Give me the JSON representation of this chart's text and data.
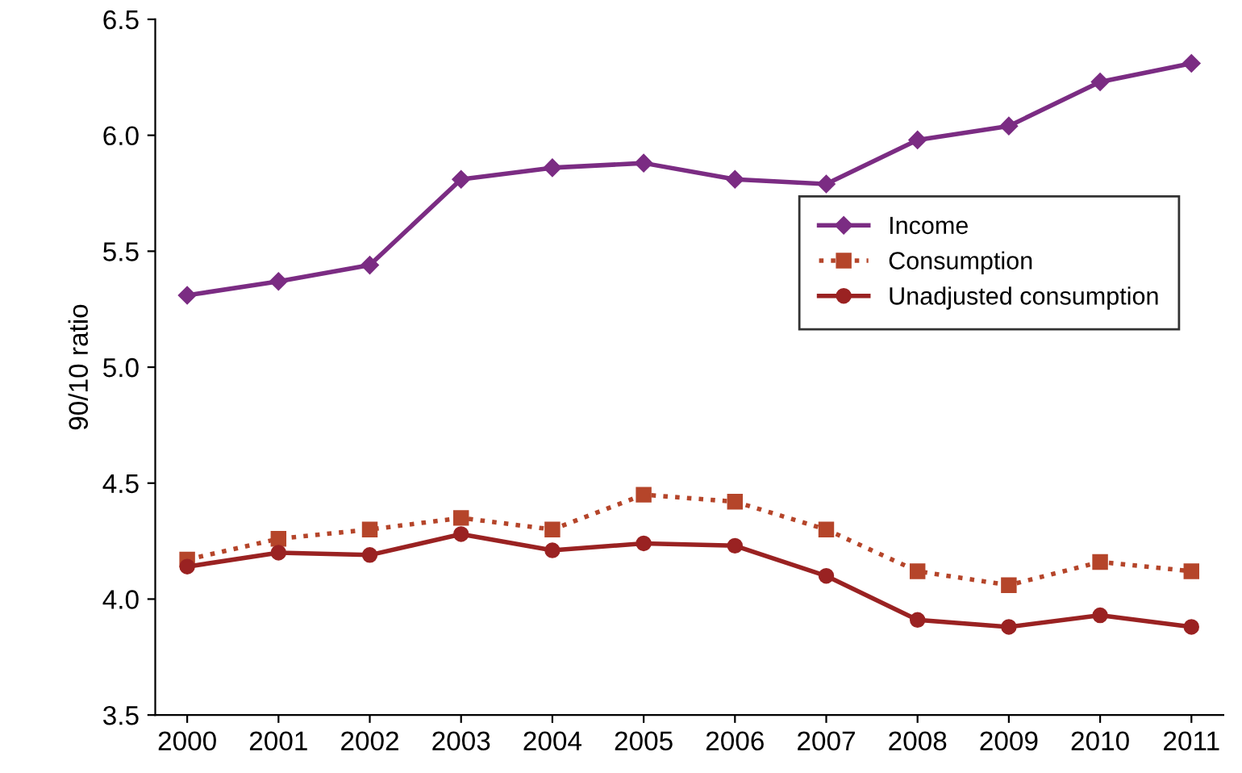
{
  "chart_data": {
    "type": "line",
    "ylabel": "90/10 ratio",
    "categories": [
      "2000",
      "2001",
      "2002",
      "2003",
      "2004",
      "2005",
      "2006",
      "2007",
      "2008",
      "2009",
      "2010",
      "2011"
    ],
    "series": [
      {
        "name": "Income",
        "color": "#7b2c83",
        "marker": "diamond",
        "line_style": "solid",
        "values": [
          5.31,
          5.37,
          5.44,
          5.81,
          5.86,
          5.88,
          5.81,
          5.79,
          5.98,
          6.04,
          6.23,
          6.31
        ]
      },
      {
        "name": "Consumption",
        "color": "#b5452a",
        "marker": "square",
        "line_style": "dotted",
        "values": [
          4.17,
          4.26,
          4.3,
          4.35,
          4.3,
          4.45,
          4.42,
          4.3,
          4.12,
          4.06,
          4.16,
          4.12
        ]
      },
      {
        "name": "Unadjusted consumption",
        "color": "#9a2222",
        "marker": "circle",
        "line_style": "solid",
        "values": [
          4.14,
          4.2,
          4.19,
          4.28,
          4.21,
          4.24,
          4.23,
          4.1,
          3.91,
          3.88,
          3.93,
          3.88
        ]
      }
    ],
    "ylim": [
      3.5,
      6.5
    ],
    "yticks": [
      3.5,
      {
        "value": 4,
        "label": "4.0"
      },
      4.5,
      {
        "value": 5,
        "label": "5.0"
      },
      5.5,
      {
        "value": 6,
        "label": "6.0"
      },
      6.5
    ],
    "grid": false,
    "legend": "right"
  }
}
